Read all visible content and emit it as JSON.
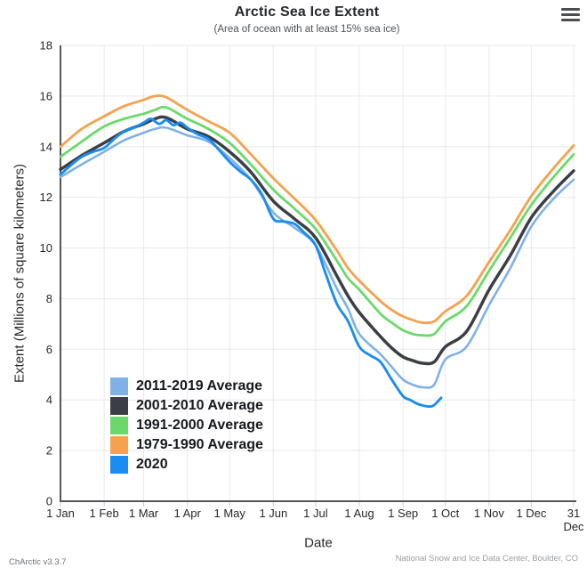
{
  "header": {
    "title": "Arctic Sea Ice Extent",
    "subtitle": "(Area of ocean with at least 15% sea ice)"
  },
  "axes": {
    "y_title": "Extent (Millions of square kilometers)",
    "x_title": "Date",
    "y_ticks": [
      0,
      2,
      4,
      6,
      8,
      10,
      12,
      14,
      16,
      18
    ],
    "x_ticks": [
      {
        "day": 0,
        "label": "1 Jan"
      },
      {
        "day": 31,
        "label": "1 Feb"
      },
      {
        "day": 59,
        "label": "1 Mar"
      },
      {
        "day": 90,
        "label": "1 Apr"
      },
      {
        "day": 120,
        "label": "1 May"
      },
      {
        "day": 151,
        "label": "1 Jun"
      },
      {
        "day": 181,
        "label": "1 Jul"
      },
      {
        "day": 212,
        "label": "1 Aug"
      },
      {
        "day": 243,
        "label": "1 Sep"
      },
      {
        "day": 273,
        "label": "1 Oct"
      },
      {
        "day": 304,
        "label": "1 Nov"
      },
      {
        "day": 334,
        "label": "1 Dec"
      },
      {
        "day": 364,
        "label": "31 Dec",
        "two_line": true
      }
    ]
  },
  "footer": {
    "left": "ChArctic v3.3.7",
    "right": "National Snow and Ice Data Center, Boulder, CO"
  },
  "colors": {
    "grid": "#e9e9e9",
    "axis": "#545658",
    "tick": "#c3cbe0",
    "tick_label": "#26282b"
  },
  "chart_data": {
    "type": "line",
    "title": "Arctic Sea Ice Extent",
    "subtitle": "(Area of ocean with at least 15% sea ice)",
    "xlabel": "Date",
    "ylabel": "Extent (Millions of square kilometers)",
    "ylim": [
      0,
      18
    ],
    "x_unit": "day_of_year (0 = 1 Jan, 364 = 31 Dec)",
    "grid": true,
    "legend_position": "inside-bottom-left",
    "series": [
      {
        "name": "2011-2019 Average",
        "color": "#7fb1e8",
        "width": 2.6,
        "points": [
          [
            0,
            12.8
          ],
          [
            15,
            13.3
          ],
          [
            31,
            13.8
          ],
          [
            45,
            14.25
          ],
          [
            59,
            14.55
          ],
          [
            67,
            14.7
          ],
          [
            75,
            14.75
          ],
          [
            90,
            14.45
          ],
          [
            105,
            14.2
          ],
          [
            120,
            13.55
          ],
          [
            135,
            12.7
          ],
          [
            151,
            11.4
          ],
          [
            166,
            10.8
          ],
          [
            181,
            10.1
          ],
          [
            196,
            8.4
          ],
          [
            204,
            7.6
          ],
          [
            212,
            6.6
          ],
          [
            227,
            5.8
          ],
          [
            235,
            5.3
          ],
          [
            243,
            4.8
          ],
          [
            250,
            4.6
          ],
          [
            257,
            4.5
          ],
          [
            265,
            4.6
          ],
          [
            273,
            5.6
          ],
          [
            288,
            6.1
          ],
          [
            304,
            7.75
          ],
          [
            319,
            9.2
          ],
          [
            334,
            10.85
          ],
          [
            349,
            11.9
          ],
          [
            364,
            12.7
          ]
        ]
      },
      {
        "name": "2001-2010 Average",
        "color": "#3b3f45",
        "width": 3.5,
        "points": [
          [
            0,
            13.1
          ],
          [
            15,
            13.65
          ],
          [
            31,
            14.15
          ],
          [
            45,
            14.6
          ],
          [
            59,
            14.9
          ],
          [
            67,
            15.1
          ],
          [
            75,
            15.15
          ],
          [
            90,
            14.7
          ],
          [
            105,
            14.4
          ],
          [
            120,
            13.8
          ],
          [
            135,
            13.0
          ],
          [
            151,
            11.85
          ],
          [
            166,
            11.15
          ],
          [
            181,
            10.4
          ],
          [
            196,
            8.9
          ],
          [
            204,
            8.1
          ],
          [
            212,
            7.45
          ],
          [
            227,
            6.5
          ],
          [
            235,
            6.05
          ],
          [
            243,
            5.7
          ],
          [
            250,
            5.55
          ],
          [
            257,
            5.45
          ],
          [
            265,
            5.5
          ],
          [
            273,
            6.1
          ],
          [
            288,
            6.7
          ],
          [
            304,
            8.35
          ],
          [
            319,
            9.7
          ],
          [
            334,
            11.2
          ],
          [
            349,
            12.2
          ],
          [
            364,
            13.05
          ]
        ]
      },
      {
        "name": "1991-2000 Average",
        "color": "#69da69",
        "width": 2.8,
        "points": [
          [
            0,
            13.6
          ],
          [
            15,
            14.2
          ],
          [
            31,
            14.8
          ],
          [
            45,
            15.1
          ],
          [
            59,
            15.3
          ],
          [
            67,
            15.45
          ],
          [
            75,
            15.55
          ],
          [
            90,
            15.1
          ],
          [
            105,
            14.7
          ],
          [
            120,
            14.15
          ],
          [
            135,
            13.3
          ],
          [
            151,
            12.3
          ],
          [
            166,
            11.55
          ],
          [
            181,
            10.75
          ],
          [
            196,
            9.5
          ],
          [
            204,
            8.8
          ],
          [
            212,
            8.35
          ],
          [
            227,
            7.4
          ],
          [
            235,
            7.05
          ],
          [
            243,
            6.75
          ],
          [
            250,
            6.6
          ],
          [
            257,
            6.55
          ],
          [
            265,
            6.6
          ],
          [
            273,
            7.1
          ],
          [
            288,
            7.7
          ],
          [
            304,
            9.1
          ],
          [
            319,
            10.4
          ],
          [
            334,
            11.7
          ],
          [
            349,
            12.75
          ],
          [
            364,
            13.7
          ]
        ]
      },
      {
        "name": "1979-1990 Average",
        "color": "#f5a14d",
        "width": 2.8,
        "points": [
          [
            0,
            14.0
          ],
          [
            15,
            14.7
          ],
          [
            31,
            15.2
          ],
          [
            45,
            15.6
          ],
          [
            59,
            15.85
          ],
          [
            67,
            16.0
          ],
          [
            75,
            15.95
          ],
          [
            90,
            15.45
          ],
          [
            105,
            15.0
          ],
          [
            120,
            14.55
          ],
          [
            135,
            13.7
          ],
          [
            151,
            12.75
          ],
          [
            166,
            11.95
          ],
          [
            181,
            11.1
          ],
          [
            196,
            9.9
          ],
          [
            204,
            9.2
          ],
          [
            212,
            8.7
          ],
          [
            227,
            7.9
          ],
          [
            235,
            7.55
          ],
          [
            243,
            7.3
          ],
          [
            250,
            7.15
          ],
          [
            257,
            7.05
          ],
          [
            265,
            7.1
          ],
          [
            273,
            7.5
          ],
          [
            288,
            8.1
          ],
          [
            304,
            9.45
          ],
          [
            319,
            10.7
          ],
          [
            334,
            12.05
          ],
          [
            349,
            13.1
          ],
          [
            364,
            14.05
          ]
        ]
      },
      {
        "name": "2020",
        "color": "#1a8df2",
        "width": 2.9,
        "points": [
          [
            0,
            12.9
          ],
          [
            8,
            13.3
          ],
          [
            15,
            13.6
          ],
          [
            23,
            13.8
          ],
          [
            31,
            13.95
          ],
          [
            38,
            14.3
          ],
          [
            45,
            14.6
          ],
          [
            52,
            14.75
          ],
          [
            59,
            14.95
          ],
          [
            64,
            15.1
          ],
          [
            70,
            14.9
          ],
          [
            75,
            15.05
          ],
          [
            80,
            14.85
          ],
          [
            85,
            14.95
          ],
          [
            90,
            14.75
          ],
          [
            97,
            14.5
          ],
          [
            105,
            14.3
          ],
          [
            112,
            13.9
          ],
          [
            120,
            13.4
          ],
          [
            128,
            13.0
          ],
          [
            135,
            12.7
          ],
          [
            143,
            12.1
          ],
          [
            151,
            11.15
          ],
          [
            158,
            11.05
          ],
          [
            166,
            10.95
          ],
          [
            173,
            10.6
          ],
          [
            181,
            10.1
          ],
          [
            188,
            9.0
          ],
          [
            196,
            7.8
          ],
          [
            204,
            7.1
          ],
          [
            212,
            6.1
          ],
          [
            220,
            5.75
          ],
          [
            227,
            5.5
          ],
          [
            235,
            4.8
          ],
          [
            243,
            4.15
          ],
          [
            248,
            4.0
          ],
          [
            253,
            3.85
          ],
          [
            257,
            3.78
          ],
          [
            261,
            3.74
          ],
          [
            264,
            3.76
          ],
          [
            267,
            3.9
          ],
          [
            270,
            4.08
          ]
        ]
      }
    ]
  }
}
